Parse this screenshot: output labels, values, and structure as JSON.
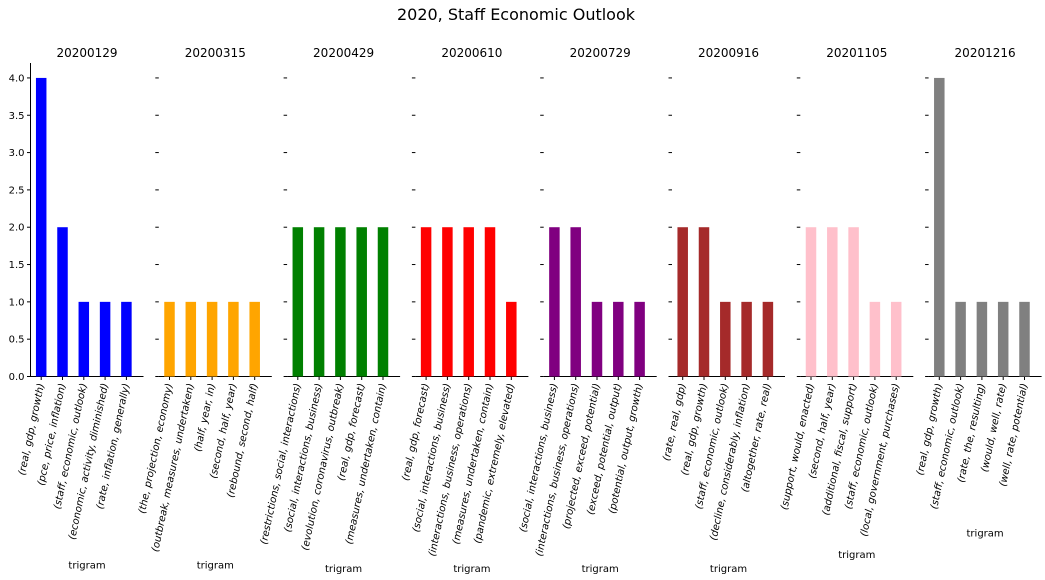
{
  "title": "2020, Staff Economic Outlook",
  "chart_data": {
    "type": "bar",
    "title": "2020, Staff Economic Outlook",
    "ylim": [
      0,
      4.2
    ],
    "yticks": [
      "0.0",
      "0.5",
      "1.0",
      "1.5",
      "2.0",
      "2.5",
      "3.0",
      "3.5",
      "4.0"
    ],
    "grid": false,
    "legend": "none",
    "subplots": [
      {
        "title": "20200129",
        "xlabel": "trigram",
        "color": "#0000ff",
        "categories": [
          "(real, gdp, growth)",
          "(pce, price, inflation)",
          "(staff, economic, outlook)",
          "(economic, activity, diminished)",
          "(rate, inflation, generally)"
        ],
        "values": [
          4,
          2,
          1,
          1,
          1
        ]
      },
      {
        "title": "20200315",
        "xlabel": "trigram",
        "color": "#ffa500",
        "categories": [
          "(the, projection, economy)",
          "(outbreak, measures, undertaken)",
          "(half, year, in)",
          "(second, half, year)",
          "(rebound, second, half)"
        ],
        "values": [
          1,
          1,
          1,
          1,
          1
        ]
      },
      {
        "title": "20200429",
        "xlabel": "trigram",
        "color": "#008000",
        "categories": [
          "(restrictions, social, interactions)",
          "(social, interactions, business)",
          "(evolution, coronavirus, outbreak)",
          "(real, gdp, forecast)",
          "(measures, undertaken, contain)"
        ],
        "values": [
          2,
          2,
          2,
          2,
          2
        ]
      },
      {
        "title": "20200610",
        "xlabel": "trigram",
        "color": "#ff0000",
        "categories": [
          "(real, gdp, forecast)",
          "(social, interactions, business)",
          "(interactions, business, operations)",
          "(measures, undertaken, contain)",
          "(pandemic, extremely, elevated)"
        ],
        "values": [
          2,
          2,
          2,
          2,
          1
        ]
      },
      {
        "title": "20200729",
        "xlabel": "trigram",
        "color": "#800080",
        "categories": [
          "(social, interactions, business)",
          "(interactions, business, operations)",
          "(projected, exceed, potential)",
          "(exceed, potential, output)",
          "(potential, output, growth)"
        ],
        "values": [
          2,
          2,
          1,
          1,
          1
        ]
      },
      {
        "title": "20200916",
        "xlabel": "trigram",
        "color": "#a52a2a",
        "categories": [
          "(rate, real, gdp)",
          "(real, gdp, growth)",
          "(staff, economic, outlook)",
          "(decline, considerably, inflation)",
          "(altogether, rate, real)"
        ],
        "values": [
          2,
          2,
          1,
          1,
          1
        ]
      },
      {
        "title": "20201105",
        "xlabel": "trigram",
        "color": "#ffc0cb",
        "categories": [
          "(support, would, enacted)",
          "(second, half, year)",
          "(additional, fiscal, support)",
          "(staff, economic, outlook)",
          "(local, government, purchases)"
        ],
        "values": [
          2,
          2,
          2,
          1,
          1
        ]
      },
      {
        "title": "20201216",
        "xlabel": "trigram",
        "color": "#808080",
        "categories": [
          "(real, gdp, growth)",
          "(staff, economic, outlook)",
          "(rate, the, resulting)",
          "(would, well, rate)",
          "(well, rate, potential)"
        ],
        "values": [
          4,
          1,
          1,
          1,
          1
        ]
      }
    ]
  }
}
